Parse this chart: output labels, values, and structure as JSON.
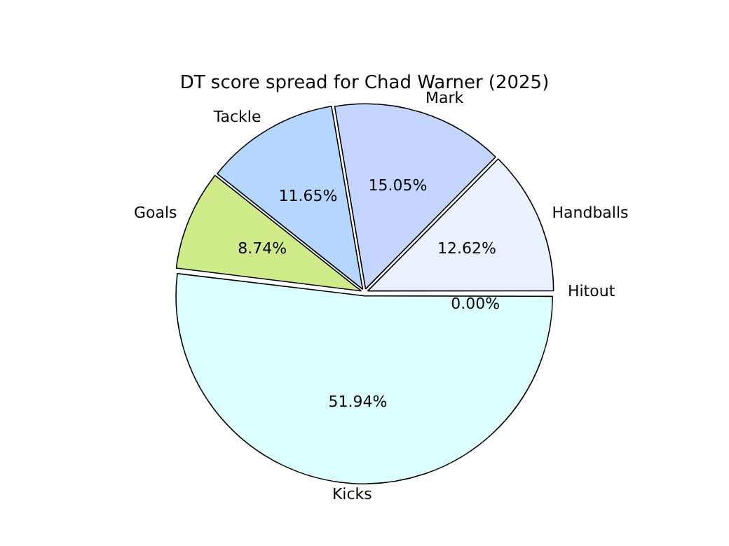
{
  "chart_data": {
    "type": "pie",
    "title": "DT score spread for Chad Warner (2025)",
    "categories": [
      "Hitout",
      "Kicks",
      "Goals",
      "Tackle",
      "Mark",
      "Handballs"
    ],
    "values": [
      0.0,
      51.94,
      8.74,
      11.65,
      15.05,
      12.62
    ],
    "colors": [
      "#f0f8ff",
      "#dbffff",
      "#d0eb8a",
      "#b4d6ff",
      "#c4d6ff",
      "#eaf1ff"
    ],
    "value_labels": [
      "0.00%",
      "51.94%",
      "8.74%",
      "11.65%",
      "15.05%",
      "12.62%"
    ],
    "legend": false
  }
}
